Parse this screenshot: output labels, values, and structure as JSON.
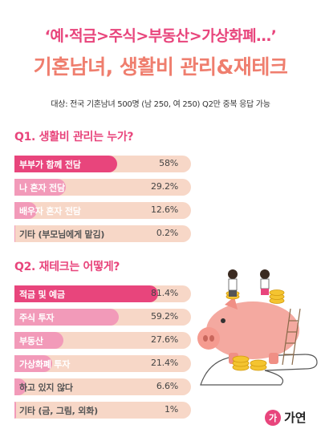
{
  "header": {
    "headline": "‘예·적금>주식>부동산>가상화폐…’",
    "title": "기혼남녀, 생활비 관리&재테크",
    "subtitle": "대상: 전국 기혼남녀 500명 (남 250, 여 250)  Q2만 중복 응답 가능"
  },
  "colors": {
    "accent": "#e8457c",
    "title": "#ef7e6e",
    "bar_top": "#e8457c",
    "bar": "#f29ab9",
    "track": "#f7d7c7"
  },
  "chart_data": [
    {
      "type": "bar",
      "orientation": "horizontal",
      "title": "Q1. 생활비 관리는 누가?",
      "categories": [
        "부부가 함께 전담",
        "나 혼자 전담",
        "배우자 혼자 전담",
        "기타 (부모님에게 맡김)"
      ],
      "values": [
        58,
        29.2,
        12.6,
        0.2
      ],
      "value_labels": [
        "58%",
        "29.2%",
        "12.6%",
        "0.2%"
      ],
      "xlim": [
        0,
        100
      ]
    },
    {
      "type": "bar",
      "orientation": "horizontal",
      "title": "Q2. 재테크는 어떻게?",
      "categories": [
        "적금 및 예금",
        "주식 투자",
        "부동산",
        "가상화폐 투자",
        "하고 있지 않다",
        "기타 (금, 그림, 외화)"
      ],
      "values": [
        81.4,
        59.2,
        27.6,
        21.4,
        6.6,
        1
      ],
      "value_labels": [
        "81.4%",
        "59.2%",
        "27.6%",
        "21.4%",
        "6.6%",
        "1%"
      ],
      "xlim": [
        0,
        100
      ]
    }
  ],
  "illustration": {
    "icon": "piggy-bank-with-couple-and-coins"
  },
  "logo": {
    "mark": "가",
    "text": "가연"
  }
}
